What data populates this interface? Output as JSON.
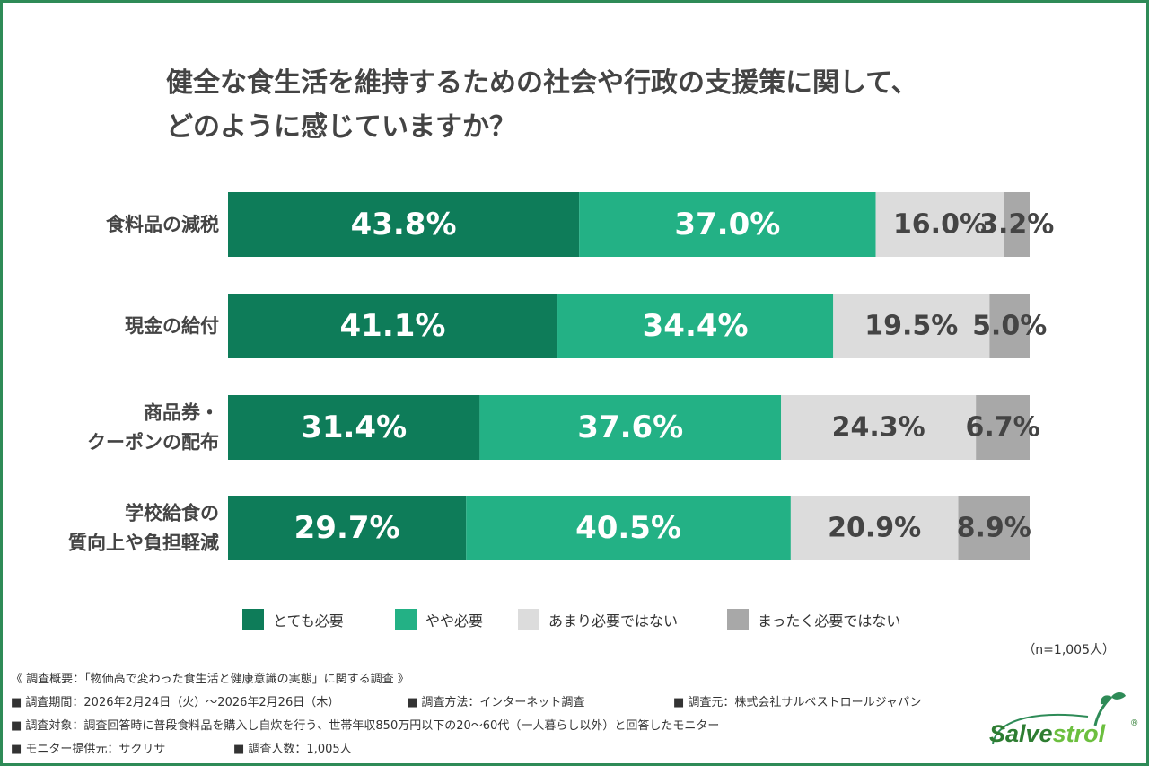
{
  "title": {
    "line1": "健全な食生活を維持するための社会や行政の支援策に関して、",
    "line2": "どのように感じていますか？"
  },
  "colors": {
    "frame": "#2e8b57",
    "very_necessary": "#0e7c59",
    "somewhat_necessary": "#23b185",
    "not_very_necessary": "#dcdcdc",
    "not_at_all_necessary": "#a8a8a8",
    "label_light": "#ffffff",
    "label_dark": "#444444"
  },
  "chart_data": {
    "type": "bar",
    "orientation": "horizontal",
    "stacked": true,
    "percent": true,
    "categories": [
      [
        "食料品の減税"
      ],
      [
        "現金の給付"
      ],
      [
        "商品券・",
        "クーポンの配布"
      ],
      [
        "学校給食の",
        "質向上や負担軽減"
      ]
    ],
    "series": [
      {
        "name": "とても必要",
        "values": [
          43.8,
          41.1,
          31.4,
          29.7
        ],
        "labels": [
          "43.8%",
          "41.1%",
          "31.4%",
          "29.7%"
        ]
      },
      {
        "name": "やや必要",
        "values": [
          37.0,
          34.4,
          37.6,
          40.5
        ],
        "labels": [
          "37.0%",
          "34.4%",
          "37.6%",
          "40.5%"
        ]
      },
      {
        "name": "あまり必要ではない",
        "values": [
          16.0,
          19.5,
          24.3,
          20.9
        ],
        "labels": [
          "16.0%",
          "19.5%",
          "24.3%",
          "20.9%"
        ]
      },
      {
        "name": "まったく必要ではない",
        "values": [
          3.2,
          5.0,
          6.7,
          8.9
        ],
        "labels": [
          "3.2%",
          "5.0%",
          "6.7%",
          "8.9%"
        ]
      }
    ],
    "xlim": [
      0,
      100
    ],
    "legend_position": "bottom"
  },
  "legend": [
    {
      "label": "とても必要",
      "color": "#0e7c59"
    },
    {
      "label": "やや必要",
      "color": "#23b185"
    },
    {
      "label": "あまり必要ではない",
      "color": "#dcdcdc"
    },
    {
      "label": "まったく必要ではない",
      "color": "#a8a8a8"
    }
  ],
  "sample_size": "（n=1,005人）",
  "notes": {
    "survey_title": "《 調査概要：「物価高で変わった食生活と健康意識の実態」に関する調査 》",
    "period": "■ 調査期間：2026年2月24日（火）〜2026年2月26日（木）",
    "method": "■ 調査方法：インターネット調査",
    "organizer": "■ 調査元：株式会社サルベストロールジャパン",
    "target": "■ 調査対象：調査回答時に普段食料品を購入し自炊を行う、世帯年収850万円以下の20〜60代（一人暮らし以外）と回答したモニター",
    "provider": "■ モニター提供元：サクリサ",
    "respondents": "■ 調査人数：1,005人"
  },
  "logo": {
    "text_dark": "Salve",
    "text_light": "strol",
    "registered": "®",
    "icon": "leaf-sprout-icon"
  }
}
